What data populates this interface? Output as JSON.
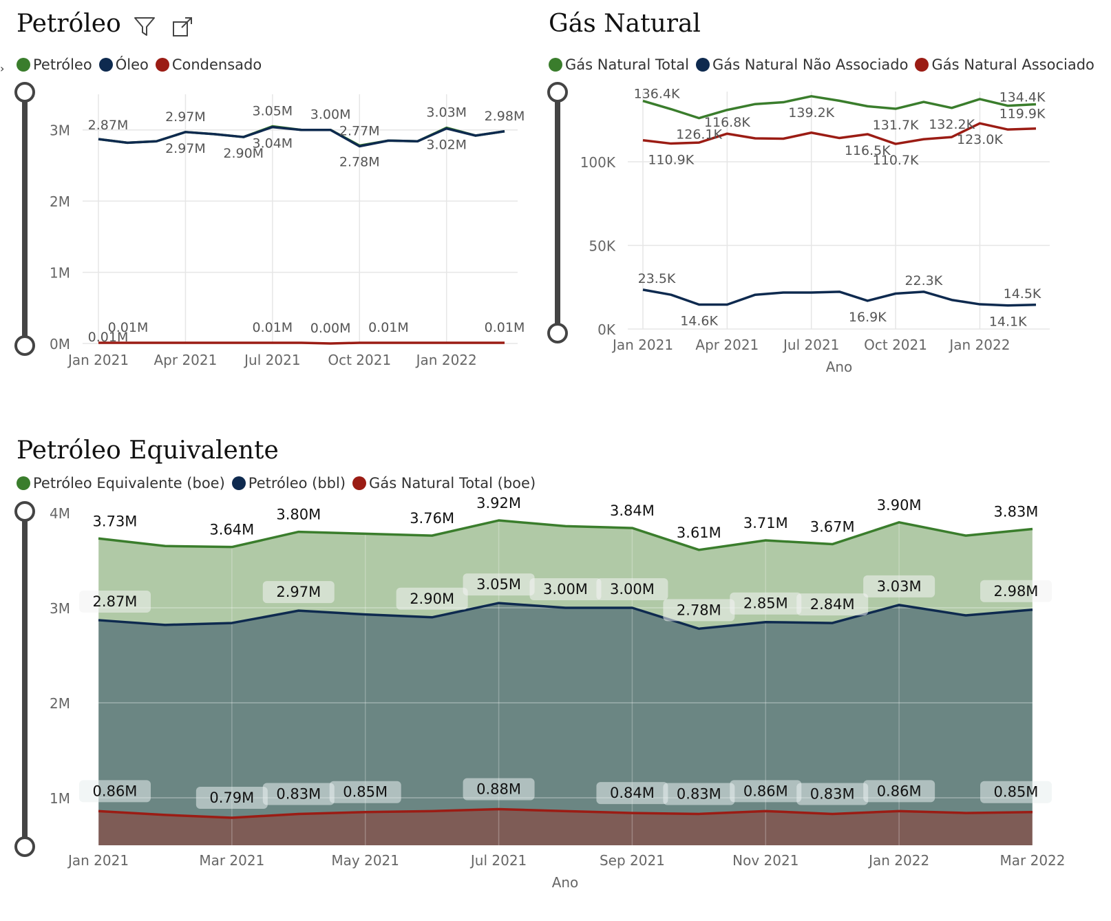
{
  "colors": {
    "green": "#3a7d2c",
    "navy": "#0e2a4f",
    "red": "#9b1c14",
    "grid": "#e6e6e6",
    "axis_text": "#666666",
    "label_text": "#555555",
    "slider": "#444444"
  },
  "toolbar": {
    "filter_icon": "filter-icon",
    "focus_icon": "focus-mode-icon"
  },
  "petroleo": {
    "title": "Petróleo",
    "legend": [
      "Petróleo",
      "Óleo",
      "Condensado"
    ],
    "chart_data": {
      "type": "line",
      "x_ticks": [
        "Jan 2021",
        "Apr 2021",
        "Jul 2021",
        "Oct 2021",
        "Jan 2022"
      ],
      "y_ticks": [
        "0M",
        "1M",
        "2M",
        "3M"
      ],
      "ylim": [
        0,
        3500000
      ],
      "x": [
        "2021-01",
        "2021-02",
        "2021-03",
        "2021-04",
        "2021-05",
        "2021-06",
        "2021-07",
        "2021-08",
        "2021-09",
        "2021-10",
        "2021-11",
        "2021-12",
        "2022-01",
        "2022-02",
        "2022-03"
      ],
      "series": [
        {
          "name": "Petróleo",
          "color": "#3a7d2c",
          "values": [
            2.87,
            2.82,
            2.84,
            2.97,
            2.94,
            2.9,
            3.05,
            3.0,
            3.0,
            2.78,
            2.85,
            2.84,
            3.03,
            2.92,
            2.98
          ]
        },
        {
          "name": "Óleo",
          "color": "#0e2a4f",
          "values": [
            2.87,
            2.82,
            2.84,
            2.97,
            2.94,
            2.9,
            3.04,
            3.0,
            3.0,
            2.77,
            2.85,
            2.84,
            3.02,
            2.92,
            2.98
          ]
        },
        {
          "name": "Condensado",
          "color": "#9b1c14",
          "values": [
            0.01,
            0.01,
            0.01,
            0.01,
            0.01,
            0.01,
            0.01,
            0.01,
            0.0,
            0.01,
            0.01,
            0.01,
            0.01,
            0.01,
            0.01
          ]
        }
      ],
      "labels": [
        {
          "text": "2.87M",
          "i": 0,
          "v": 2.87
        },
        {
          "text": "2.97M",
          "i": 3,
          "v": 2.97,
          "pos": "above"
        },
        {
          "text": "2.97M",
          "i": 3,
          "v": 2.97,
          "pos": "below"
        },
        {
          "text": "2.90M",
          "i": 5,
          "v": 2.9,
          "pos": "below"
        },
        {
          "text": "3.05M",
          "i": 6,
          "v": 3.05,
          "pos": "above"
        },
        {
          "text": "3.04M",
          "i": 6,
          "v": 3.04,
          "pos": "below"
        },
        {
          "text": "3.00M",
          "i": 8,
          "v": 3.0,
          "pos": "above"
        },
        {
          "text": "2.77M",
          "i": 9,
          "v": 2.77,
          "pos": "above"
        },
        {
          "text": "2.78M",
          "i": 9,
          "v": 2.78,
          "pos": "below"
        },
        {
          "text": "3.03M",
          "i": 12,
          "v": 3.03,
          "pos": "above"
        },
        {
          "text": "3.02M",
          "i": 12,
          "v": 3.02,
          "pos": "below"
        },
        {
          "text": "2.98M",
          "i": 14,
          "v": 2.98,
          "pos": "above"
        },
        {
          "text": "0.01M",
          "i": 1,
          "v": 0.01,
          "pos": "above"
        },
        {
          "text": "0.01M",
          "i": 0,
          "v": 0.01,
          "pos": "near"
        },
        {
          "text": "0.01M",
          "i": 6,
          "v": 0.01,
          "pos": "above"
        },
        {
          "text": "0.00M",
          "i": 8,
          "v": 0.0,
          "pos": "above"
        },
        {
          "text": "0.01M",
          "i": 10,
          "v": 0.01,
          "pos": "above"
        },
        {
          "text": "0.01M",
          "i": 14,
          "v": 0.01,
          "pos": "above"
        }
      ]
    }
  },
  "gas": {
    "title": "Gás Natural",
    "legend": [
      "Gás Natural Total",
      "Gás Natural Não Associado",
      "Gás Natural Associado"
    ],
    "xlabel": "Ano",
    "chart_data": {
      "type": "line",
      "x_ticks": [
        "Jan 2021",
        "Apr 2021",
        "Jul 2021",
        "Oct 2021",
        "Jan 2022"
      ],
      "y_ticks": [
        "0K",
        "50K",
        "100K"
      ],
      "ylim": [
        0,
        142000
      ],
      "x": [
        "2021-01",
        "2021-02",
        "2021-03",
        "2021-04",
        "2021-05",
        "2021-06",
        "2021-07",
        "2021-08",
        "2021-09",
        "2021-10",
        "2021-11",
        "2021-12",
        "2022-01",
        "2022-02",
        "2022-03"
      ],
      "series": [
        {
          "name": "Gás Natural Total",
          "color": "#3a7d2c",
          "values": [
            136.4,
            131.5,
            126.1,
            131.0,
            134.5,
            135.6,
            139.2,
            136.5,
            133.2,
            131.7,
            135.8,
            132.2,
            137.5,
            133.5,
            134.4
          ]
        },
        {
          "name": "Gás Natural Não Associado",
          "color": "#0e2a4f",
          "values": [
            23.5,
            20.5,
            14.6,
            14.6,
            20.5,
            21.8,
            21.8,
            22.3,
            16.9,
            21.2,
            22.3,
            17.4,
            14.8,
            14.1,
            14.5
          ]
        },
        {
          "name": "Gás Natural Associado",
          "color": "#9b1c14",
          "values": [
            112.9,
            110.9,
            111.5,
            116.8,
            114.0,
            113.8,
            117.4,
            114.2,
            116.5,
            110.7,
            113.5,
            114.8,
            123.0,
            119.3,
            119.9
          ]
        }
      ],
      "labels": [
        {
          "text": "136.4K",
          "i": 0,
          "v": 136.4,
          "pos": "above"
        },
        {
          "text": "116.8K",
          "i": 3,
          "v": 116.8,
          "pos": "above"
        },
        {
          "text": "126.1K",
          "i": 2,
          "v": 126.1,
          "pos": "below"
        },
        {
          "text": "139.2K",
          "i": 6,
          "v": 139.2,
          "pos": "below"
        },
        {
          "text": "131.7K",
          "i": 9,
          "v": 131.7,
          "pos": "below"
        },
        {
          "text": "132.2K",
          "i": 11,
          "v": 132.2,
          "pos": "below"
        },
        {
          "text": "134.4K",
          "i": 14,
          "v": 134.4,
          "pos": "above"
        },
        {
          "text": "119.9K",
          "i": 14,
          "v": 119.9,
          "pos": "above"
        },
        {
          "text": "110.9K",
          "i": 1,
          "v": 110.9,
          "pos": "below"
        },
        {
          "text": "116.5K",
          "i": 8,
          "v": 116.5,
          "pos": "below"
        },
        {
          "text": "110.7K",
          "i": 9,
          "v": 110.7,
          "pos": "below"
        },
        {
          "text": "123.0K",
          "i": 12,
          "v": 123.0,
          "pos": "below"
        },
        {
          "text": "23.5K",
          "i": 0,
          "v": 23.5,
          "pos": "above"
        },
        {
          "text": "14.6K",
          "i": 2,
          "v": 14.6,
          "pos": "below"
        },
        {
          "text": "22.3K",
          "i": 10,
          "v": 22.3,
          "pos": "above"
        },
        {
          "text": "16.9K",
          "i": 8,
          "v": 16.9,
          "pos": "below"
        },
        {
          "text": "14.5K",
          "i": 14,
          "v": 14.5,
          "pos": "above"
        },
        {
          "text": "14.1K",
          "i": 13,
          "v": 14.1,
          "pos": "below"
        }
      ]
    }
  },
  "equivalente": {
    "title": "Petróleo Equivalente",
    "legend": [
      "Petróleo Equivalente (boe)",
      "Petróleo (bbl)",
      "Gás Natural Total (boe)"
    ],
    "xlabel": "Ano",
    "chart_data": {
      "type": "area",
      "x_ticks": [
        "Jan 2021",
        "Mar 2021",
        "May 2021",
        "Jul 2021",
        "Sep 2021",
        "Nov 2021",
        "Jan 2022",
        "Mar 2022"
      ],
      "y_ticks": [
        "1M",
        "2M",
        "3M",
        "4M"
      ],
      "ylim": [
        0.5,
        4.0
      ],
      "x": [
        "2021-01",
        "2021-02",
        "2021-03",
        "2021-04",
        "2021-05",
        "2021-06",
        "2021-07",
        "2021-08",
        "2021-09",
        "2021-10",
        "2021-11",
        "2021-12",
        "2022-01",
        "2022-02",
        "2022-03"
      ],
      "series": [
        {
          "name": "Petróleo Equivalente (boe)",
          "color": "#3a7d2c",
          "fill": "#b0c9a6",
          "values": [
            3.73,
            3.65,
            3.64,
            3.8,
            3.78,
            3.76,
            3.92,
            3.86,
            3.84,
            3.61,
            3.71,
            3.67,
            3.9,
            3.76,
            3.83
          ]
        },
        {
          "name": "Petróleo (bbl)",
          "color": "#0e2a4f",
          "fill": "#6b8683",
          "values": [
            2.87,
            2.82,
            2.84,
            2.97,
            2.93,
            2.9,
            3.05,
            3.0,
            3.0,
            2.78,
            2.85,
            2.84,
            3.03,
            2.92,
            2.98
          ]
        },
        {
          "name": "Gás Natural Total (boe)",
          "color": "#9b1c14",
          "fill": "#7e5c56",
          "values": [
            0.86,
            0.82,
            0.79,
            0.83,
            0.85,
            0.86,
            0.88,
            0.86,
            0.84,
            0.83,
            0.86,
            0.83,
            0.86,
            0.84,
            0.85
          ]
        }
      ],
      "labels_top": [
        "3.73M",
        "",
        "3.64M",
        "3.80M",
        "",
        "3.76M",
        "3.92M",
        "",
        "3.84M",
        "3.61M",
        "3.71M",
        "3.67M",
        "3.90M",
        "",
        "3.83M"
      ],
      "labels_mid": [
        "2.87M",
        "",
        "",
        "2.97M",
        "",
        "2.90M",
        "3.05M",
        "3.00M",
        "3.00M",
        "2.78M",
        "2.85M",
        "2.84M",
        "3.03M",
        "",
        "2.98M"
      ],
      "labels_bot": [
        "0.86M",
        "",
        "0.79M",
        "0.83M",
        "0.85M",
        "",
        "0.88M",
        "",
        "0.84M",
        "0.83M",
        "0.86M",
        "0.83M",
        "0.86M",
        "",
        "0.85M"
      ]
    }
  }
}
